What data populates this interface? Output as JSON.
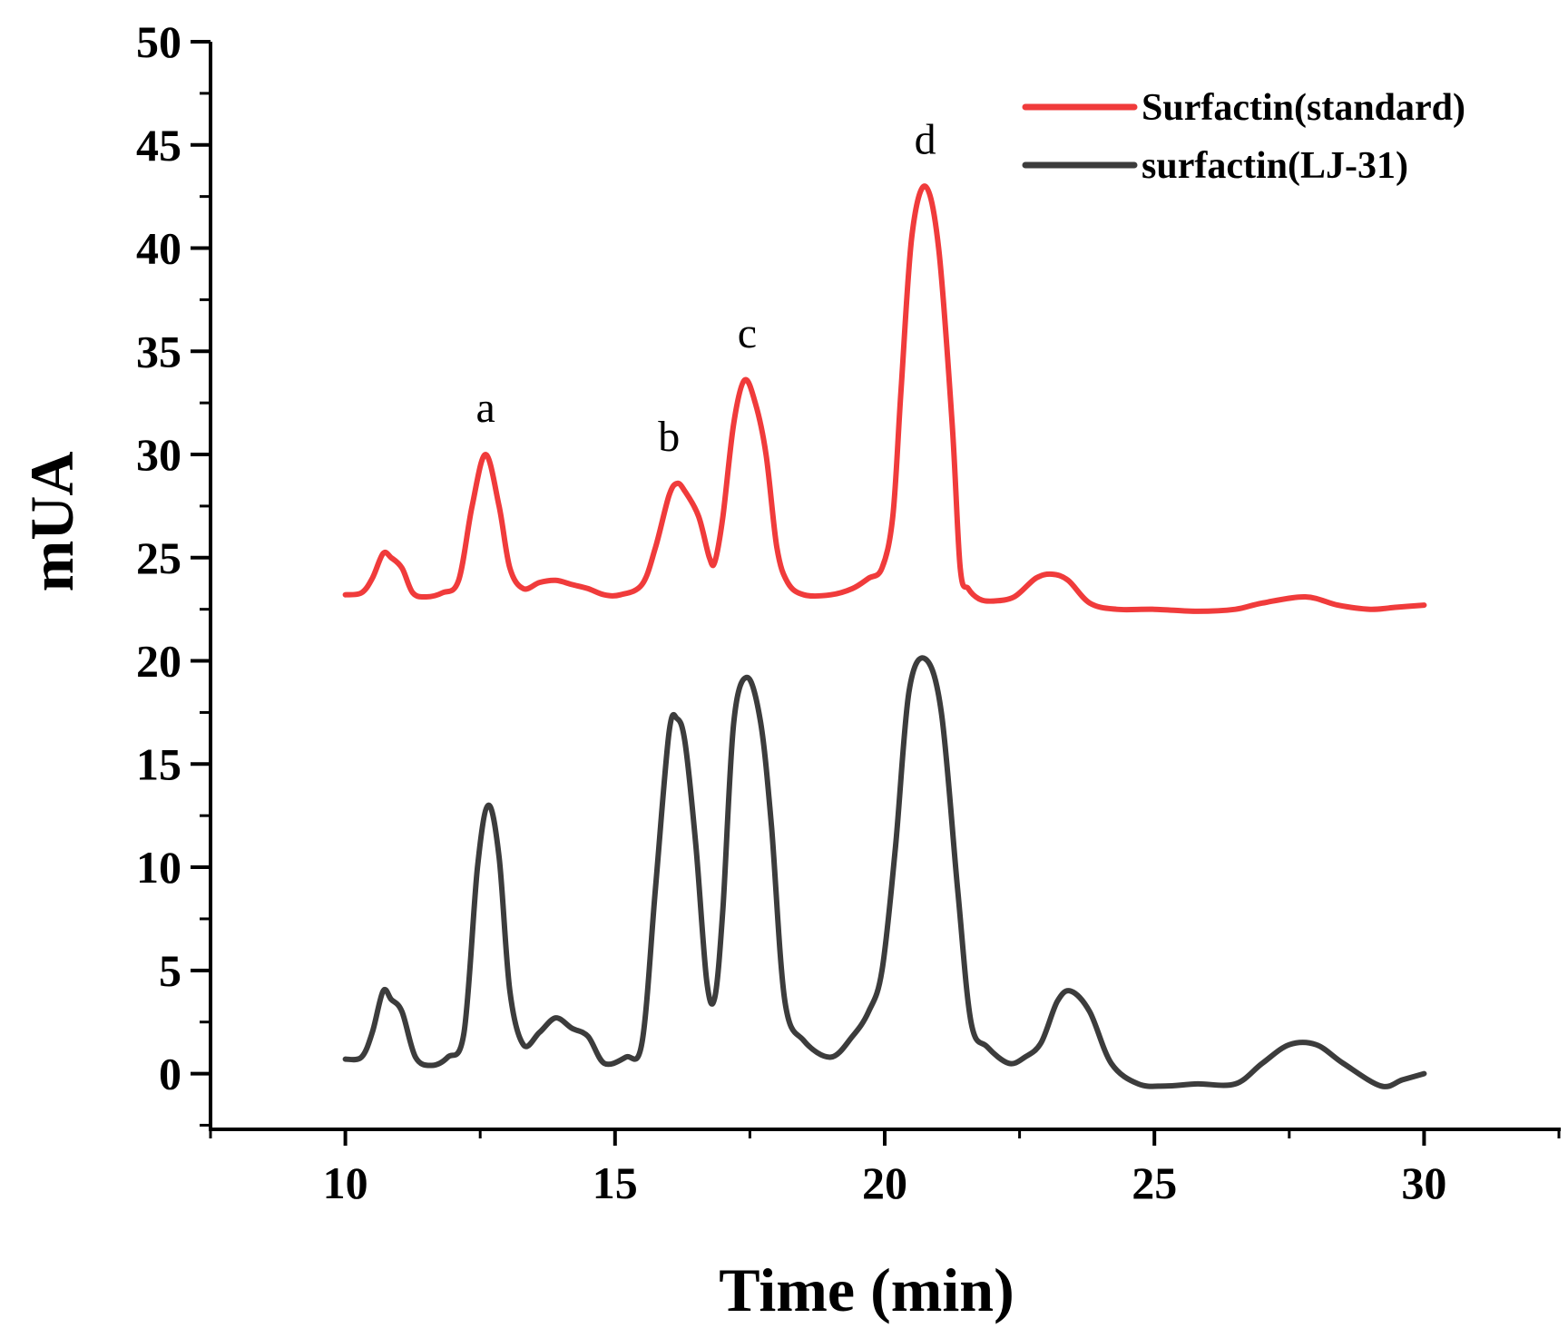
{
  "chart_data": {
    "type": "line",
    "title": "",
    "xlabel": "Time (min)",
    "ylabel": "mUA",
    "xlim": [
      7.5,
      32.5
    ],
    "ylim": [
      -2.7,
      50
    ],
    "xticks": [
      10,
      15,
      20,
      25,
      30
    ],
    "yticks": [
      0,
      5,
      10,
      15,
      20,
      25,
      30,
      35,
      40,
      45,
      50
    ],
    "grid": false,
    "legend_position": "top-right",
    "series": [
      {
        "name": "Surfactin(standard)",
        "color": "#f03b3b",
        "x": [
          10.0,
          10.3,
          10.5,
          10.7,
          10.85,
          11.05,
          11.25,
          11.5,
          11.8,
          12.1,
          12.35,
          12.6,
          12.85,
          13.05,
          13.3,
          13.6,
          13.9,
          14.2,
          14.5,
          14.8,
          15.1,
          15.5,
          15.75,
          16.0,
          16.15,
          16.3,
          16.55,
          16.75,
          16.85,
          17.0,
          17.2,
          17.4,
          17.6,
          17.8,
          18.0,
          18.2,
          18.5,
          19.0,
          19.4,
          19.7,
          19.95,
          20.15,
          20.3,
          20.5,
          20.75,
          21.0,
          21.25,
          21.4,
          21.55,
          21.75,
          22.0,
          22.4,
          22.8,
          23.1,
          23.4,
          23.8,
          24.3,
          25.0,
          25.8,
          26.5,
          27.0,
          27.8,
          28.4,
          29.0,
          29.5,
          30.0
        ],
        "y": [
          23.2,
          23.3,
          24.0,
          25.2,
          25.0,
          24.5,
          23.3,
          23.1,
          23.3,
          23.9,
          27.5,
          30.0,
          27.5,
          24.5,
          23.5,
          23.8,
          23.9,
          23.7,
          23.5,
          23.2,
          23.2,
          23.7,
          25.5,
          28.0,
          28.6,
          28.2,
          27.0,
          25.0,
          24.8,
          27.0,
          31.5,
          33.6,
          32.5,
          30.0,
          25.5,
          23.8,
          23.2,
          23.2,
          23.5,
          24.0,
          24.5,
          27.0,
          33.0,
          40.5,
          43.0,
          40.0,
          31.5,
          24.5,
          23.5,
          23.0,
          22.9,
          23.1,
          24.0,
          24.2,
          23.9,
          22.8,
          22.5,
          22.5,
          22.4,
          22.5,
          22.8,
          23.1,
          22.7,
          22.5,
          22.6,
          22.7
        ]
      },
      {
        "name": "surfactin(LJ-31)",
        "color": "#3c3c3c",
        "x": [
          10.0,
          10.3,
          10.5,
          10.7,
          10.85,
          11.05,
          11.3,
          11.6,
          11.9,
          12.2,
          12.45,
          12.65,
          12.85,
          13.05,
          13.3,
          13.6,
          13.9,
          14.2,
          14.5,
          14.8,
          15.2,
          15.5,
          15.75,
          16.0,
          16.15,
          16.3,
          16.5,
          16.7,
          16.85,
          17.0,
          17.2,
          17.45,
          17.7,
          17.9,
          18.15,
          18.5,
          19.0,
          19.4,
          19.7,
          19.95,
          20.2,
          20.45,
          20.75,
          21.05,
          21.35,
          21.6,
          21.9,
          22.3,
          22.6,
          22.9,
          23.2,
          23.45,
          23.8,
          24.2,
          24.7,
          25.2,
          25.8,
          26.5,
          27.0,
          27.5,
          28.0,
          28.5,
          29.2,
          29.6,
          30.0
        ],
        "y": [
          0.7,
          0.8,
          2.0,
          4.0,
          3.6,
          3.0,
          0.8,
          0.4,
          0.8,
          2.0,
          10.0,
          13.0,
          10.5,
          4.0,
          1.4,
          2.0,
          2.7,
          2.2,
          1.8,
          0.5,
          0.8,
          1.5,
          9.0,
          16.5,
          17.2,
          16.0,
          11.0,
          4.5,
          3.7,
          8.0,
          17.0,
          19.2,
          17.0,
          12.0,
          3.5,
          1.6,
          0.8,
          1.8,
          3.0,
          5.0,
          11.0,
          18.5,
          20.1,
          17.5,
          9.0,
          2.5,
          1.3,
          0.5,
          0.8,
          1.5,
          3.5,
          4.0,
          3.0,
          0.5,
          -0.5,
          -0.6,
          -0.5,
          -0.5,
          0.5,
          1.4,
          1.4,
          0.5,
          -0.6,
          -0.3,
          0.0
        ]
      }
    ],
    "annotations": [
      {
        "label": "a",
        "x": 12.6,
        "y": 30.0
      },
      {
        "label": "b",
        "x": 16.0,
        "y": 28.6
      },
      {
        "label": "c",
        "x": 17.45,
        "y": 33.6
      },
      {
        "label": "d",
        "x": 20.75,
        "y": 43.0
      }
    ]
  }
}
